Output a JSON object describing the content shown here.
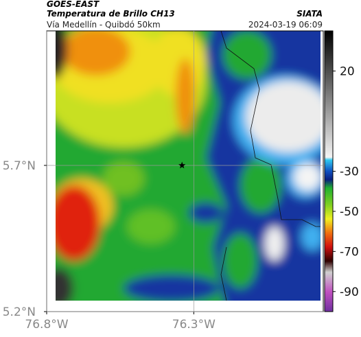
{
  "header": {
    "title": "GOES-EAST",
    "subtitle": "Temperatura de Brillo CH13",
    "source": "SIATA",
    "location": "Vía Medellín - Quibdó 50km",
    "timestamp": "2024-03-19 06:09"
  },
  "map": {
    "xlim": [
      -76.8,
      -75.86
    ],
    "ylim": [
      5.2,
      6.16
    ],
    "xticks": [
      {
        "value": -76.8,
        "label": "76.8°W"
      },
      {
        "value": -76.3,
        "label": "76.3°W"
      }
    ],
    "yticks": [
      {
        "value": 5.2,
        "label": "5.2°N"
      },
      {
        "value": 5.7,
        "label": "5.7°N"
      }
    ],
    "grid": true,
    "marker": {
      "lon": -76.34,
      "lat": 5.7
    }
  },
  "colorbar": {
    "lim": [
      -100,
      40
    ],
    "ticks": [
      20,
      -30,
      -50,
      -70,
      -90
    ]
  }
}
